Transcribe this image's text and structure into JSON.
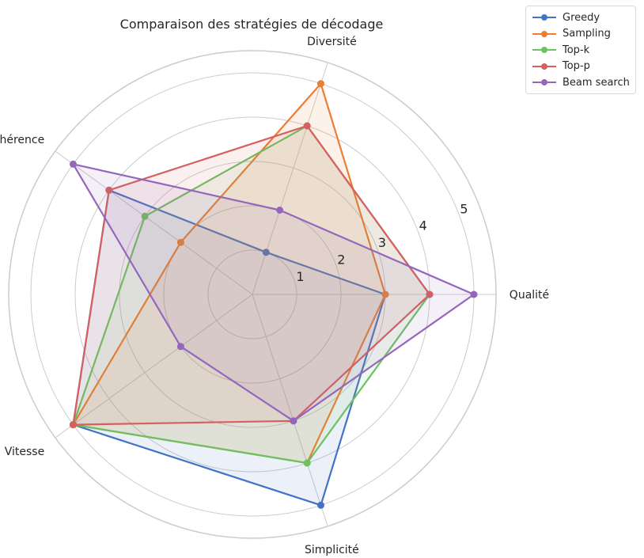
{
  "chart_data": {
    "type": "radar",
    "title": "Comparaison des stratégies de décodage",
    "axes": [
      "Qualité",
      "Diversité",
      "Cohérence",
      "Vitesse",
      "Simplicité"
    ],
    "rlim": [
      0,
      5.5
    ],
    "rticks": [
      "1",
      "2",
      "3",
      "4",
      "5"
    ],
    "rtick_values": [
      1,
      2,
      3,
      4,
      5
    ],
    "grid": true,
    "legend_position": "top-right",
    "series": [
      {
        "name": "Greedy",
        "color": "#4472c4",
        "values": [
          3,
          1,
          4,
          5,
          5
        ]
      },
      {
        "name": "Sampling",
        "color": "#ed7d31",
        "values": [
          3,
          5,
          2,
          5,
          4
        ]
      },
      {
        "name": "Top-k",
        "color": "#6cc160",
        "values": [
          4,
          4,
          3,
          5,
          4
        ]
      },
      {
        "name": "Top-p",
        "color": "#d65f5f",
        "values": [
          4,
          4,
          4,
          5,
          3
        ]
      },
      {
        "name": "Beam search",
        "color": "#9467bd",
        "values": [
          5,
          2,
          5,
          2,
          3
        ]
      }
    ]
  }
}
